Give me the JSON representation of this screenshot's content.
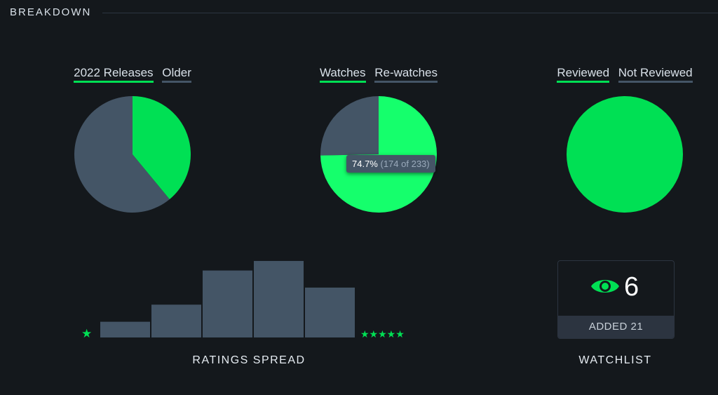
{
  "section": {
    "title": "BREAKDOWN"
  },
  "pies": [
    {
      "legend_a": "2022 Releases",
      "legend_b": "Older",
      "share_a": 0.39,
      "color_a": "#00e054",
      "color_b": "#445566"
    },
    {
      "legend_a": "Watches",
      "legend_b": "Re-watches",
      "share_a": 0.747,
      "color_a": "#00e054",
      "color_b": "#445566",
      "highlight_color": "#15ff6c",
      "tooltip": {
        "percent": "74.7%",
        "detail": "(174 of 233)"
      }
    },
    {
      "legend_a": "Reviewed",
      "legend_b": "Not Reviewed",
      "share_a": 1.0,
      "color_a": "#00e054",
      "color_b": "#445566"
    }
  ],
  "chart_data": {
    "type": "bar",
    "categories": [
      "1",
      "2",
      "3",
      "4",
      "5"
    ],
    "values": [
      23,
      48,
      98,
      112,
      73
    ],
    "ylim": [
      0,
      115
    ],
    "bar_color": "#445566",
    "star_color": "#00e054",
    "low_label": "★",
    "high_label": "★★★★★",
    "xlabel": "RATINGS SPREAD"
  },
  "watchlist": {
    "count": "6",
    "added": "ADDED 21",
    "label": "WATCHLIST",
    "icon": "eye-icon",
    "icon_color": "#00e054"
  }
}
